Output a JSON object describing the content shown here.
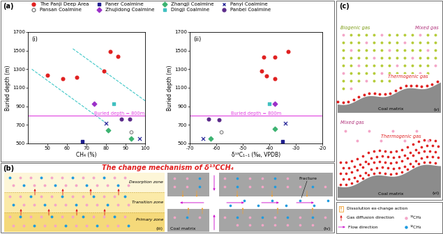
{
  "panel_labels": [
    "(a)",
    "(b)",
    "(c)"
  ],
  "chart_data": [
    {
      "type": "scatter",
      "title": "(i)",
      "x_label": "CH₄ (%)",
      "y_label": "Buried depth (m)",
      "xlim": [
        40,
        100
      ],
      "ylim": [
        500,
        1700
      ],
      "xticks": [
        50,
        60,
        70,
        80,
        90,
        100
      ],
      "yticks": [
        500,
        700,
        900,
        1100,
        1300,
        1500,
        1700
      ],
      "legend": "upper left",
      "reference_line": {
        "value": 800,
        "label": "Buried depth = 800m",
        "color": "#e040e0"
      },
      "trend_lines": [
        {
          "color": "#40c8c8",
          "line_style": "dashed",
          "x": [
            63,
            100
          ],
          "y": [
            1520,
            960
          ]
        },
        {
          "color": "#40c8c8",
          "line_style": "dashed",
          "x": [
            42,
            80
          ],
          "y": [
            1300,
            720
          ]
        }
      ],
      "series": [
        {
          "name": "The Panji Deep Area",
          "color": "#e02020",
          "marker": "circle",
          "x": [
            50,
            58,
            65,
            79,
            82,
            86
          ],
          "y": [
            1235,
            1200,
            1215,
            1280,
            1490,
            1440
          ]
        },
        {
          "name": "Paner Coalmine",
          "color": "#1f1f8f",
          "marker": "square",
          "x": [
            68
          ],
          "y": [
            520
          ]
        },
        {
          "name": "Zhangji Coalmine",
          "color": "#3cb371",
          "marker": "diamond",
          "x": [
            81,
            93
          ],
          "y": [
            640,
            550
          ]
        },
        {
          "name": "Panyi Coalmine",
          "color": "#2a2a9a",
          "marker": "x",
          "x": [
            80,
            97
          ],
          "y": [
            720,
            550
          ]
        },
        {
          "name": "Pansan Coalmine",
          "color": "#808080",
          "marker": "open_circle",
          "x": [
            93
          ],
          "y": [
            620
          ]
        },
        {
          "name": "Zhujidong Coalmine",
          "color": "#9b30c8",
          "marker": "diamond",
          "x": [
            74
          ],
          "y": [
            930
          ]
        },
        {
          "name": "Dingji Coalmine",
          "color": "#40c0c0",
          "marker": "square",
          "x": [
            84
          ],
          "y": [
            930
          ]
        },
        {
          "name": "Panbei Coalmine",
          "color": "#5b2a8a",
          "marker": "circle",
          "x": [
            88,
            92
          ],
          "y": [
            760,
            760
          ]
        }
      ]
    },
    {
      "type": "scatter",
      "title": "(ii)",
      "x_label": "δ¹³C₁₋₁ (‰, VPDB)",
      "y_label": "Buried depth (m)",
      "xlim": [
        -70,
        -20
      ],
      "ylim": [
        500,
        1700
      ],
      "xticks": [
        -70,
        -60,
        -50,
        -40,
        -30,
        -20
      ],
      "yticks": [
        500,
        700,
        900,
        1100,
        1300,
        1500,
        1700
      ],
      "reference_line": {
        "value": 800,
        "label": "Buried depth = 800m",
        "color": "#e040e0"
      },
      "series": [
        {
          "name": "The Panji Deep Area",
          "color": "#e02020",
          "marker": "circle",
          "x": [
            -43,
            -42,
            -38,
            -41,
            -38,
            -33
          ],
          "y": [
            1280,
            1430,
            1430,
            1230,
            1200,
            1490
          ]
        },
        {
          "name": "Paner Coalmine",
          "color": "#1f1f8f",
          "marker": "square",
          "x": [
            -35
          ],
          "y": [
            520
          ]
        },
        {
          "name": "Zhangji Coalmine",
          "color": "#3cb371",
          "marker": "diamond",
          "x": [
            -62,
            -38
          ],
          "y": [
            550,
            660
          ]
        },
        {
          "name": "Panyi Coalmine",
          "color": "#2a2a9a",
          "marker": "x",
          "x": [
            -65,
            -34
          ],
          "y": [
            555,
            720
          ]
        },
        {
          "name": "Pansan Coalmine",
          "color": "#808080",
          "marker": "open_circle",
          "x": [
            -58
          ],
          "y": [
            620
          ]
        },
        {
          "name": "Zhujidong Coalmine",
          "color": "#9b30c8",
          "marker": "diamond",
          "x": [
            -38
          ],
          "y": [
            930
          ]
        },
        {
          "name": "Dingji Coalmine",
          "color": "#40c0c0",
          "marker": "square",
          "x": [
            -40
          ],
          "y": [
            930
          ]
        },
        {
          "name": "Panbei Coalmine",
          "color": "#5b2a8a",
          "marker": "circle",
          "x": [
            -63,
            -59
          ],
          "y": [
            760,
            755
          ]
        }
      ]
    }
  ],
  "mechanism": {
    "title": "The change mechanism of δ¹³CCH₄",
    "diagrams": [
      {
        "label": "(iii)",
        "zones": [
          "Desorption zone",
          "Transition zone",
          "Primary zone"
        ]
      },
      {
        "label": "(iv)",
        "fracture": "Fracture",
        "matrix": "Coal matrix"
      }
    ]
  },
  "gas_distribution": [
    {
      "label": "(v)",
      "biogenic": "Biogenic gas",
      "mixed": "Mixed gas",
      "thermogenic": "Thermogenic gas",
      "matrix": "Coal matrix"
    },
    {
      "label": "(vi)",
      "mixed": "Mixed gas",
      "thermogenic": "Thermogenic gas",
      "matrix": "Coal matrix"
    }
  ],
  "key": {
    "dissolution": "Dissolution ex-change action",
    "diffusion": "Gas diffusion direction",
    "c13": "¹³CH₄",
    "flow": "Flow direction",
    "c12": "¹²CH₄"
  }
}
